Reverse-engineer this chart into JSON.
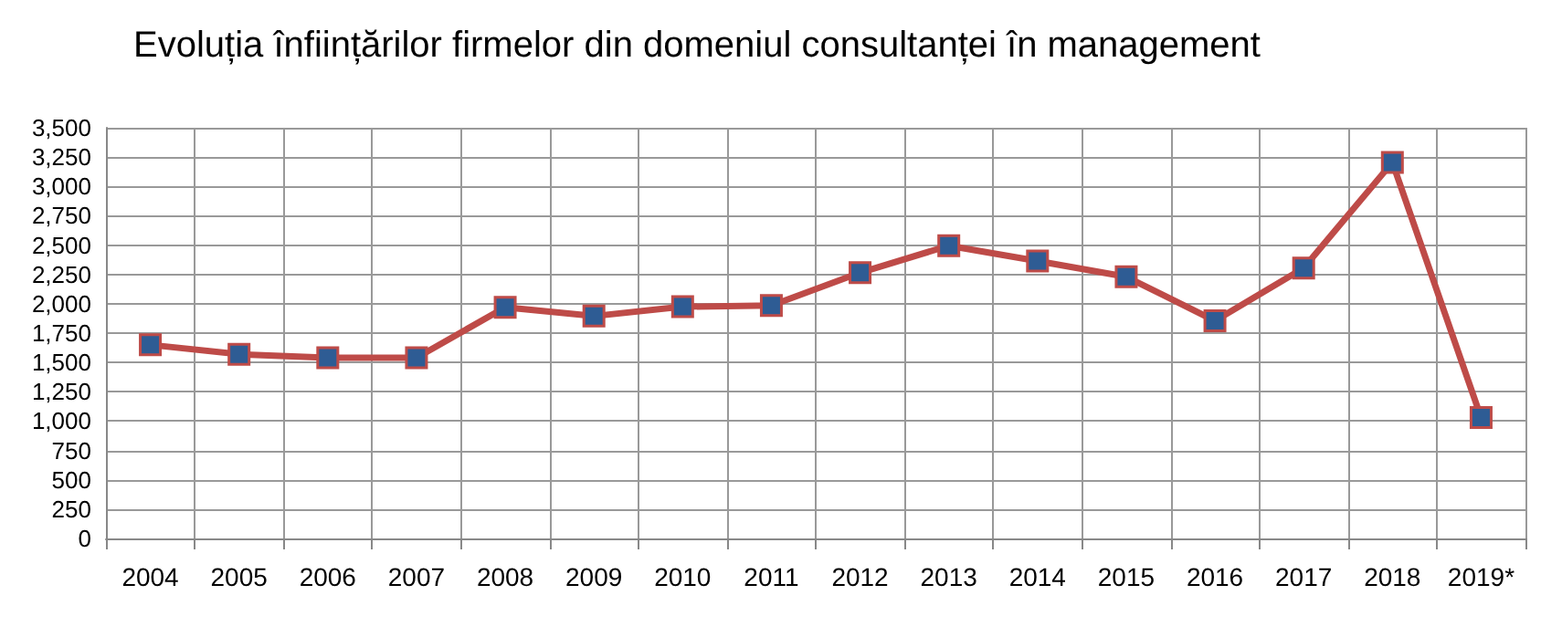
{
  "chart_data": {
    "type": "line",
    "title": "Evoluția înființărilor firmelor din domeniul consultanței în management",
    "categories": [
      "2004",
      "2005",
      "2006",
      "2007",
      "2008",
      "2009",
      "2010",
      "2011",
      "2012",
      "2013",
      "2014",
      "2015",
      "2016",
      "2017",
      "2018",
      "2019*"
    ],
    "series": [
      {
        "color": "#be4b48",
        "values": [
          1650,
          1570,
          1540,
          1540,
          1970,
          1895,
          1975,
          1985,
          2265,
          2495,
          2365,
          2230,
          1855,
          2305,
          3205,
          1030
        ]
      }
    ],
    "ylim": [
      0,
      3500
    ],
    "yticks": [
      0,
      {
        "value": 250,
        "label": "250"
      },
      {
        "value": 500,
        "label": "500"
      },
      {
        "value": 750,
        "label": "750"
      },
      {
        "value": 1000,
        "label": "1,000"
      },
      {
        "value": 1250,
        "label": "1,250"
      },
      {
        "value": 1500,
        "label": "1,500"
      },
      {
        "value": 1750,
        "label": "1,750"
      },
      {
        "value": 2000,
        "label": "2,000"
      },
      {
        "value": 2250,
        "label": "2,250"
      },
      {
        "value": 2500,
        "label": "2,500"
      },
      {
        "value": 2750,
        "label": "2,750"
      },
      {
        "value": 3000,
        "label": "3,000"
      },
      {
        "value": 3250,
        "label": "3,250"
      },
      {
        "value": 3500,
        "label": "3,500"
      }
    ],
    "grid": true,
    "marker": "square",
    "line_style": "solid"
  }
}
